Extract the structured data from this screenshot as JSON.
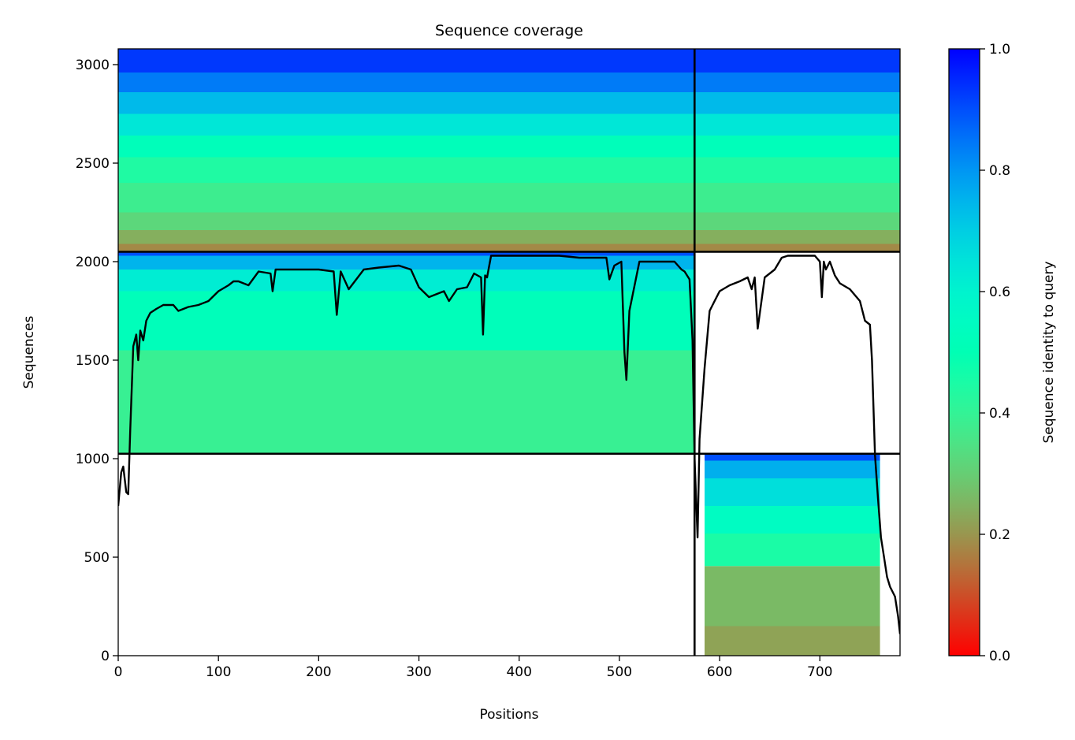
{
  "chart_data": {
    "type": "heatmap",
    "title": "Sequence coverage",
    "xlabel": "Positions",
    "ylabel": "Sequences",
    "xlim": [
      0,
      780
    ],
    "ylim": [
      0,
      3080
    ],
    "x_ticks": [
      0,
      100,
      200,
      300,
      400,
      500,
      600,
      700
    ],
    "y_ticks": [
      0,
      500,
      1000,
      1500,
      2000,
      2500,
      3000
    ],
    "grid": false,
    "colorbar": {
      "label": "Sequence identity to query",
      "range": [
        0.0,
        1.0
      ],
      "ticks": [
        0.0,
        0.2,
        0.4,
        0.6,
        0.8,
        1.0
      ],
      "tick_labels": [
        "0.0",
        "0.2",
        "0.4",
        "0.6",
        "0.8",
        "1.0"
      ],
      "colormap": "rainbow_r"
    },
    "blocks": [
      {
        "name": "chain-a-msa",
        "x": [
          0,
          575
        ],
        "y": [
          1025,
          2050
        ],
        "fill_x": [
          0,
          575
        ],
        "bands": [
          {
            "y": [
              1025,
              1550
            ],
            "identity": 0.39
          },
          {
            "y": [
              1550,
              1850
            ],
            "identity": 0.52
          },
          {
            "y": [
              1850,
              1960
            ],
            "identity": 0.62
          },
          {
            "y": [
              1960,
              2030
            ],
            "identity": 0.75
          },
          {
            "y": [
              2030,
              2050
            ],
            "identity": 0.9
          }
        ]
      },
      {
        "name": "chain-b-msa",
        "x": [
          575,
          780
        ],
        "y": [
          0,
          1025
        ],
        "fill_x": [
          585,
          760
        ],
        "bands": [
          {
            "y": [
              0,
              150
            ],
            "identity": 0.22
          },
          {
            "y": [
              150,
              455
            ],
            "identity": 0.26
          },
          {
            "y": [
              455,
              620
            ],
            "identity": 0.45
          },
          {
            "y": [
              620,
              760
            ],
            "identity": 0.55
          },
          {
            "y": [
              760,
              900
            ],
            "identity": 0.66
          },
          {
            "y": [
              900,
              990
            ],
            "identity": 0.76
          },
          {
            "y": [
              990,
              1025
            ],
            "identity": 0.9
          }
        ]
      },
      {
        "name": "paired-msa",
        "x": [
          0,
          780
        ],
        "y": [
          2050,
          3080
        ],
        "fill_x": [
          0,
          780
        ],
        "bands": [
          {
            "y": [
              2050,
              2090
            ],
            "identity": 0.18
          },
          {
            "y": [
              2090,
              2160
            ],
            "identity": 0.24
          },
          {
            "y": [
              2160,
              2250
            ],
            "identity": 0.32
          },
          {
            "y": [
              2250,
              2400
            ],
            "identity": 0.38
          },
          {
            "y": [
              2400,
              2530
            ],
            "identity": 0.44
          },
          {
            "y": [
              2530,
              2640
            ],
            "identity": 0.52
          },
          {
            "y": [
              2640,
              2750
            ],
            "identity": 0.64
          },
          {
            "y": [
              2750,
              2860
            ],
            "identity": 0.74
          },
          {
            "y": [
              2860,
              2960
            ],
            "identity": 0.84
          },
          {
            "y": [
              2960,
              3080
            ],
            "identity": 0.93
          }
        ]
      }
    ],
    "dividers": {
      "vertical_x": 575,
      "horizontal_y": [
        1025,
        2050
      ]
    },
    "coverage_line": {
      "x": [
        0,
        3,
        5,
        8,
        10,
        12,
        15,
        18,
        20,
        22,
        25,
        28,
        32,
        38,
        45,
        55,
        60,
        70,
        80,
        90,
        100,
        110,
        115,
        120,
        130,
        140,
        152,
        154,
        157,
        165,
        180,
        200,
        215,
        218,
        222,
        230,
        245,
        260,
        280,
        292,
        300,
        310,
        325,
        330,
        338,
        348,
        355,
        362,
        364,
        366,
        368,
        372,
        380,
        400,
        420,
        440,
        460,
        480,
        487,
        490,
        495,
        502,
        505,
        507,
        510,
        520,
        535,
        545,
        555,
        562,
        565,
        570,
        573,
        575,
        578,
        580,
        585,
        590,
        595,
        600,
        610,
        620,
        628,
        632,
        635,
        638,
        645,
        655,
        662,
        668,
        680,
        695,
        700,
        702,
        704,
        706,
        710,
        715,
        720,
        730,
        740,
        745,
        750,
        752,
        755,
        758,
        761,
        764,
        767,
        770,
        775,
        778,
        780
      ],
      "y": [
        760,
        930,
        960,
        830,
        820,
        1150,
        1570,
        1630,
        1500,
        1650,
        1600,
        1700,
        1740,
        1760,
        1780,
        1780,
        1750,
        1770,
        1780,
        1800,
        1850,
        1880,
        1900,
        1900,
        1880,
        1950,
        1940,
        1850,
        1960,
        1960,
        1960,
        1960,
        1950,
        1730,
        1950,
        1860,
        1960,
        1970,
        1980,
        1960,
        1870,
        1820,
        1850,
        1800,
        1860,
        1870,
        1940,
        1920,
        1630,
        1930,
        1920,
        2030,
        2030,
        2030,
        2030,
        2030,
        2020,
        2020,
        2020,
        1910,
        1980,
        2000,
        1540,
        1400,
        1750,
        2000,
        2000,
        2000,
        2000,
        1960,
        1950,
        1910,
        1600,
        1000,
        600,
        1100,
        1460,
        1750,
        1800,
        1850,
        1880,
        1900,
        1920,
        1860,
        1920,
        1660,
        1920,
        1960,
        2020,
        2030,
        2030,
        2030,
        2000,
        1820,
        2000,
        1960,
        2000,
        1930,
        1890,
        1860,
        1800,
        1700,
        1680,
        1500,
        1020,
        800,
        600,
        500,
        400,
        350,
        300,
        200,
        110
      ]
    }
  }
}
